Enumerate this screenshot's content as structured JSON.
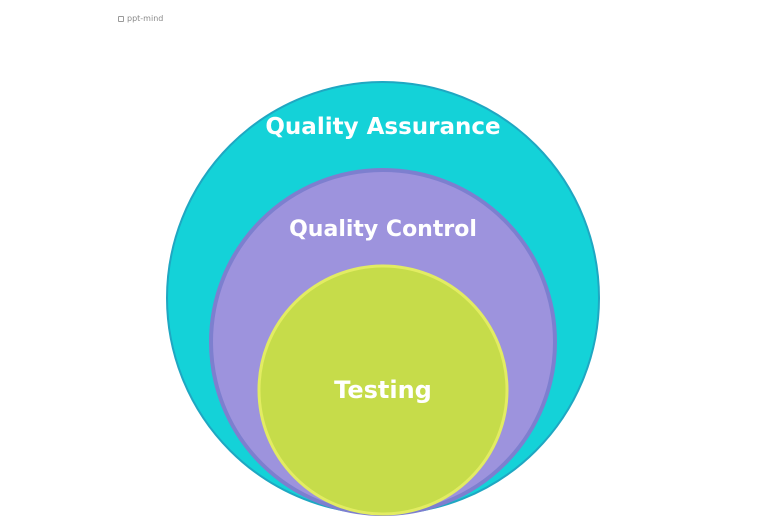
{
  "watermark": {
    "text": "ppt-mind"
  },
  "diagram": {
    "rings": [
      {
        "label": "Quality Assurance",
        "fill": "#14d2d8",
        "stroke": "#1fa7c2"
      },
      {
        "label": "Quality Control",
        "fill": "#9d93dd",
        "stroke": "#7d7fcf"
      },
      {
        "label": "Testing",
        "fill": "#c6dc4a",
        "stroke": "#e2ec62"
      }
    ]
  }
}
